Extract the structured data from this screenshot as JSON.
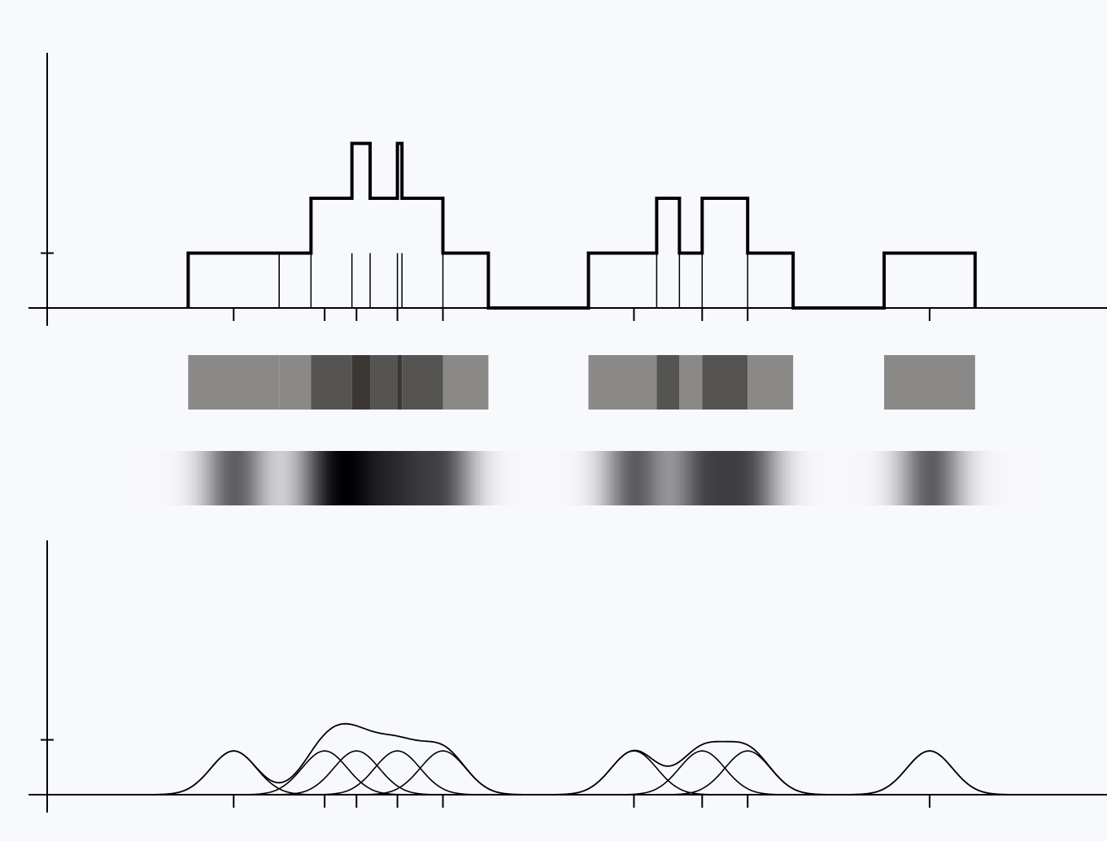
{
  "chart_data": {
    "type": "kde",
    "x": [
      4.1,
      6.1,
      6.8,
      7.7,
      8.7,
      12.9,
      14.4,
      15.4,
      19.4
    ],
    "bandwidth": 0.5,
    "xlim": [
      0,
      23.3
    ],
    "ylim": [
      0,
      4.6
    ],
    "yticks": [
      1
    ]
  }
}
